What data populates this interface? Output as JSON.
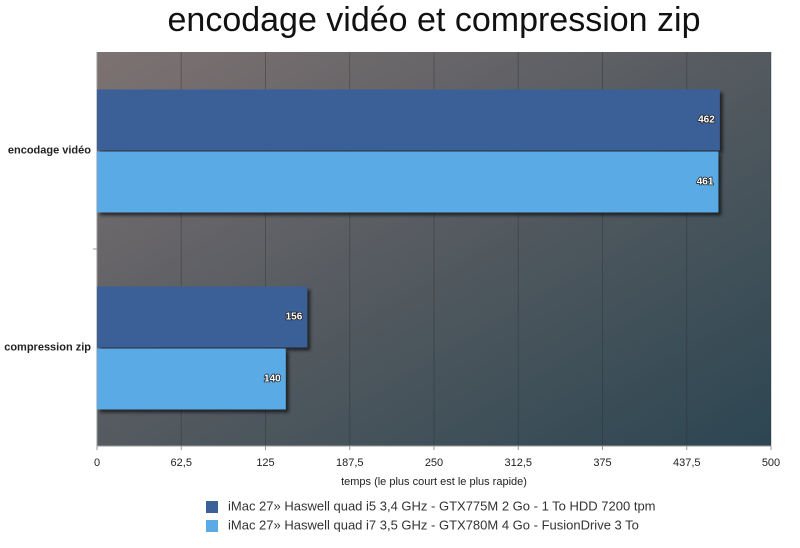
{
  "chart_data": {
    "type": "bar",
    "orientation": "horizontal",
    "title": "encodage vidéo et compression zip",
    "x_label": "temps (le plus court est le plus rapide)",
    "categories": [
      "encodage vidéo",
      "compression zip"
    ],
    "series": [
      {
        "name": "iMac 27» Haswell quad i5 3,4 GHz - GTX775M 2 Go - 1 To HDD 7200 tpm",
        "color": "#3a6198",
        "values": [
          462,
          156
        ]
      },
      {
        "name": "iMac 27» Haswell quad i7 3,5 GHz - GTX780M 4 Go - FusionDrive 3 To",
        "color": "#5aaae6",
        "values": [
          461,
          140
        ]
      }
    ],
    "xlim": [
      0,
      500
    ],
    "xticks": [
      0,
      {
        "value": 62.5,
        "label": "62,5"
      },
      125,
      {
        "value": 187.5,
        "label": "187,5"
      },
      250,
      {
        "value": 312.5,
        "label": "312,5"
      },
      375,
      {
        "value": 437.5,
        "label": "437,5"
      },
      500
    ],
    "grid": true,
    "legend": "bottom"
  }
}
